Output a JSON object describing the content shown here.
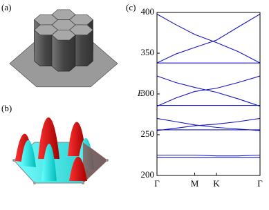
{
  "panel_labels": [
    "(a)",
    "(b)",
    "(c)"
  ],
  "chart_data": {
    "type": "line",
    "y_label": "E",
    "x": [
      0,
      0.5,
      1,
      1.577,
      2.15,
      2.732
    ],
    "xlim": [
      0,
      2.732
    ],
    "xticks": [
      {
        "value": 0,
        "label": "Γ"
      },
      {
        "value": 1,
        "label": "M"
      },
      {
        "value": 1.577,
        "label": "K"
      },
      {
        "value": 2.732,
        "label": "Γ"
      }
    ],
    "ylim": [
      200,
      400
    ],
    "yticks": [
      200,
      250,
      300,
      350,
      400
    ],
    "grid": false,
    "series": [
      {
        "color": "#1414c8",
        "values": [
          398,
          385,
          373,
          363,
          352,
          338
        ]
      },
      {
        "color": "#1414c8",
        "values": [
          338,
          349,
          357,
          366,
          382,
          398
        ]
      },
      {
        "color": "#1414c8",
        "values": [
          338,
          338,
          338,
          338,
          338,
          338
        ]
      },
      {
        "color": "#1414c8",
        "values": [
          322,
          314,
          308,
          302,
          294,
          285
        ]
      },
      {
        "color": "#1414c8",
        "values": [
          285,
          295,
          303,
          307,
          314,
          322
        ]
      },
      {
        "color": "#1414c8",
        "values": [
          286,
          286,
          286,
          286,
          286,
          286
        ]
      },
      {
        "color": "#1414c8",
        "values": [
          270,
          266,
          262,
          259,
          257,
          255
        ]
      },
      {
        "color": "#1414c8",
        "values": [
          255,
          258,
          261,
          263,
          266,
          270
        ]
      },
      {
        "color": "#1414c8",
        "values": [
          256,
          256,
          256,
          256,
          256,
          256
        ]
      },
      {
        "color": "#1414c8",
        "values": [
          225,
          225,
          225,
          224,
          224,
          225
        ]
      },
      {
        "color": "#1414c8",
        "values": [
          222,
          222,
          222,
          222,
          222,
          222
        ]
      }
    ]
  }
}
